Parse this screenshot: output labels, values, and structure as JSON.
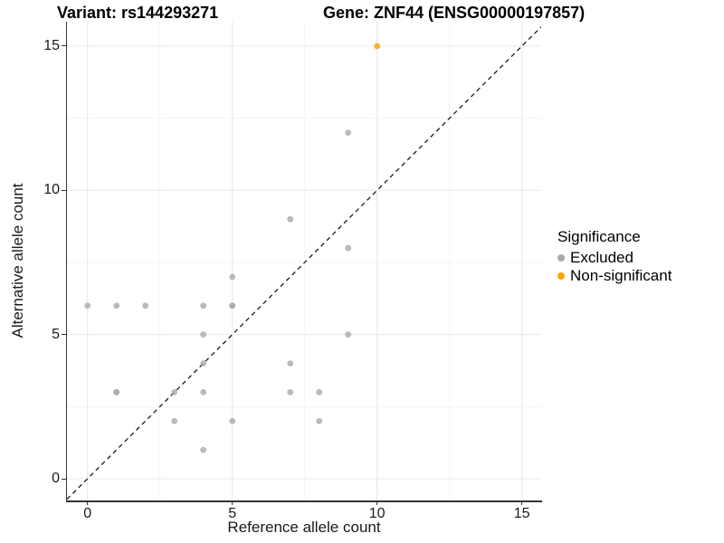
{
  "titles": {
    "left": "Variant: rs144293271",
    "right": "Gene: ZNF44 (ENSG00000197857)"
  },
  "chart_data": {
    "type": "scatter",
    "title": "Variant: rs144293271 / Gene: ZNF44 (ENSG00000197857)",
    "xlabel": "Reference allele count",
    "ylabel": "Alternative allele count",
    "xlim": [
      -0.75,
      15.75
    ],
    "ylim": [
      -0.75,
      15.75
    ],
    "xticks": [
      0,
      5,
      10,
      15
    ],
    "yticks": [
      0,
      5,
      10,
      15
    ],
    "minor_xticks": [
      2.5,
      7.5,
      12.5
    ],
    "minor_yticks": [
      2.5,
      7.5,
      12.5
    ],
    "grid": true,
    "legend_position": "right",
    "identity_line": {
      "equation": "y = x",
      "style": "dashed",
      "color": "#1a1a1a"
    },
    "series": [
      {
        "name": "Excluded",
        "color": "#A9A9A9",
        "opacity": 0.8,
        "points": [
          [
            0,
            6
          ],
          [
            1,
            3
          ],
          [
            1,
            6
          ],
          [
            2,
            6
          ],
          [
            3,
            2
          ],
          [
            3,
            3
          ],
          [
            4,
            1
          ],
          [
            4,
            3
          ],
          [
            4,
            4
          ],
          [
            4,
            5
          ],
          [
            4,
            6
          ],
          [
            5,
            2
          ],
          [
            5,
            6
          ],
          [
            5,
            7
          ],
          [
            7,
            3
          ],
          [
            7,
            4
          ],
          [
            7,
            9
          ],
          [
            8,
            2
          ],
          [
            8,
            3
          ],
          [
            9,
            5
          ],
          [
            9,
            8
          ],
          [
            9,
            12
          ]
        ]
      },
      {
        "name": "Non-significant",
        "color": "#FFA500",
        "opacity": 0.85,
        "points": [
          [
            10,
            15
          ]
        ]
      }
    ],
    "overplotted_darker_points": [
      [
        1,
        3
      ],
      [
        5,
        6
      ]
    ]
  },
  "axis": {
    "xlabel": "Reference allele count",
    "ylabel": "Alternative allele count",
    "x_tick_labels": [
      "0",
      "5",
      "10",
      "15"
    ],
    "y_tick_labels": [
      "0",
      "5",
      "10",
      "15"
    ]
  },
  "legend": {
    "title": "Significance",
    "items": [
      {
        "label": "Excluded",
        "color": "#A9A9A9"
      },
      {
        "label": "Non-significant",
        "color": "#FFA500"
      }
    ]
  }
}
